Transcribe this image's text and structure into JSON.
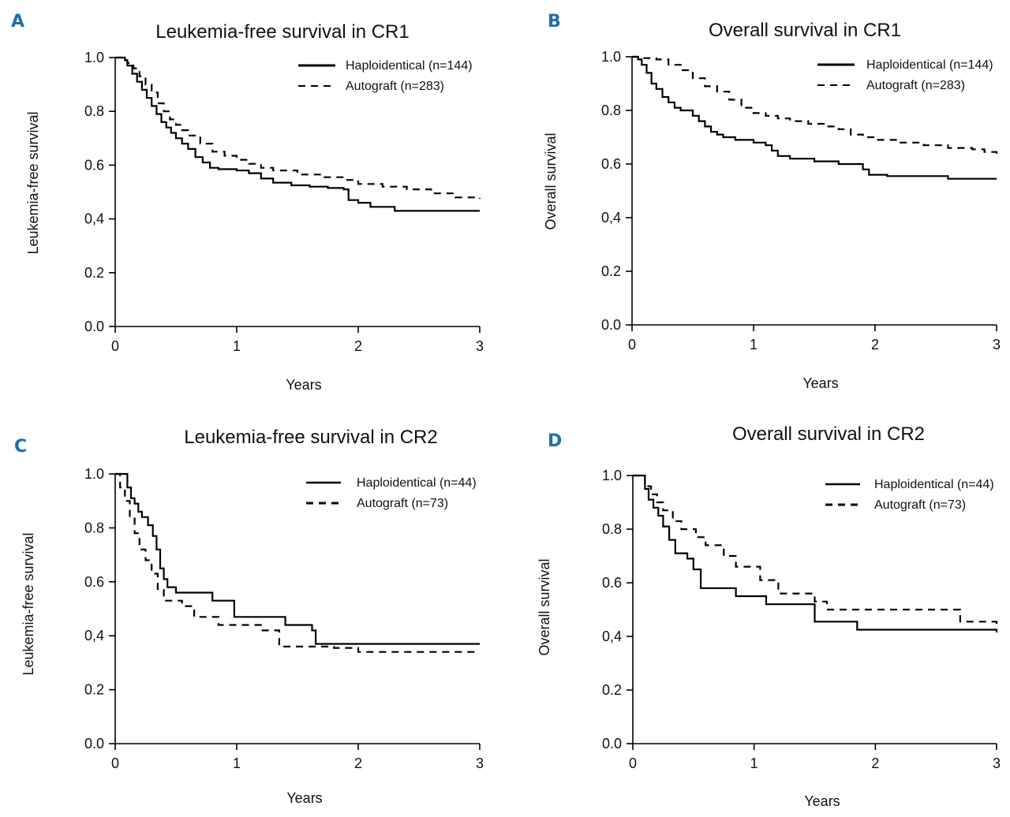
{
  "colors": {
    "panel_letter": "#1f6fa8",
    "line": "#000000"
  },
  "chart_data": [
    {
      "type": "line",
      "panel": "A",
      "title": "Leukemia-free survival in CR1",
      "xlabel": "Years",
      "ylabel": "Leukemia-free survival",
      "xlim": [
        0,
        3
      ],
      "ylim": [
        0,
        1
      ],
      "xticks": [
        "0",
        "1",
        "2",
        "3"
      ],
      "yticks": [
        "0.0",
        "0.2",
        "0,4",
        "0.6",
        "0.8",
        "1.0"
      ],
      "series": [
        {
          "name": "Haploidentical (n=144)",
          "style": "solid",
          "x": [
            0,
            0.04,
            0.08,
            0.1,
            0.14,
            0.18,
            0.22,
            0.26,
            0.3,
            0.34,
            0.38,
            0.42,
            0.46,
            0.5,
            0.55,
            0.6,
            0.66,
            0.72,
            0.78,
            0.85,
            1.0,
            1.1,
            1.2,
            1.3,
            1.45,
            1.6,
            1.75,
            1.88,
            1.92,
            2.0,
            2.1,
            2.3,
            2.5,
            3.0
          ],
          "y": [
            1.0,
            1.0,
            0.99,
            0.97,
            0.94,
            0.91,
            0.88,
            0.85,
            0.82,
            0.79,
            0.76,
            0.74,
            0.72,
            0.7,
            0.68,
            0.66,
            0.63,
            0.61,
            0.59,
            0.585,
            0.58,
            0.57,
            0.55,
            0.535,
            0.525,
            0.52,
            0.515,
            0.51,
            0.47,
            0.46,
            0.445,
            0.43,
            0.43,
            0.43
          ]
        },
        {
          "name": "Autograft (n=283)",
          "style": "dashed",
          "x": [
            0,
            0.05,
            0.1,
            0.15,
            0.2,
            0.25,
            0.3,
            0.35,
            0.4,
            0.45,
            0.5,
            0.55,
            0.6,
            0.7,
            0.8,
            0.9,
            1.0,
            1.1,
            1.2,
            1.3,
            1.5,
            1.7,
            1.9,
            2.0,
            2.2,
            2.4,
            2.6,
            2.8,
            3.0
          ],
          "y": [
            1.0,
            0.99,
            0.98,
            0.96,
            0.93,
            0.9,
            0.87,
            0.83,
            0.8,
            0.77,
            0.75,
            0.73,
            0.71,
            0.68,
            0.65,
            0.635,
            0.62,
            0.605,
            0.59,
            0.58,
            0.565,
            0.555,
            0.545,
            0.53,
            0.52,
            0.51,
            0.495,
            0.48,
            0.475
          ]
        }
      ]
    },
    {
      "type": "line",
      "panel": "B",
      "title": "Overall survival in CR1",
      "xlabel": "Years",
      "ylabel": "Overall survival",
      "xlim": [
        0,
        3
      ],
      "ylim": [
        0,
        1
      ],
      "xticks": [
        "0",
        "1",
        "2",
        "3"
      ],
      "yticks": [
        "0.0",
        "0.2",
        "0,4",
        "0.6",
        "0.8",
        "1.0"
      ],
      "series": [
        {
          "name": "Haploidentical (n=144)",
          "style": "solid",
          "x": [
            0,
            0.05,
            0.08,
            0.12,
            0.16,
            0.2,
            0.25,
            0.3,
            0.35,
            0.4,
            0.5,
            0.55,
            0.6,
            0.65,
            0.7,
            0.75,
            0.85,
            1.0,
            1.1,
            1.15,
            1.2,
            1.3,
            1.5,
            1.7,
            1.9,
            1.95,
            2.1,
            2.3,
            2.55,
            2.6,
            3.0
          ],
          "y": [
            1.0,
            0.99,
            0.97,
            0.94,
            0.9,
            0.88,
            0.85,
            0.83,
            0.81,
            0.8,
            0.78,
            0.76,
            0.74,
            0.72,
            0.71,
            0.7,
            0.69,
            0.68,
            0.67,
            0.65,
            0.63,
            0.62,
            0.61,
            0.6,
            0.58,
            0.56,
            0.555,
            0.555,
            0.555,
            0.545,
            0.545
          ]
        },
        {
          "name": "Autograft (n=283)",
          "style": "dashed",
          "x": [
            0,
            0.1,
            0.2,
            0.3,
            0.4,
            0.5,
            0.6,
            0.7,
            0.8,
            0.9,
            1.0,
            1.1,
            1.2,
            1.3,
            1.45,
            1.6,
            1.7,
            1.8,
            1.9,
            2.0,
            2.2,
            2.4,
            2.6,
            2.8,
            2.9,
            3.0
          ],
          "y": [
            1.0,
            0.995,
            0.99,
            0.97,
            0.95,
            0.92,
            0.89,
            0.87,
            0.84,
            0.81,
            0.79,
            0.78,
            0.77,
            0.76,
            0.75,
            0.74,
            0.73,
            0.71,
            0.7,
            0.69,
            0.68,
            0.67,
            0.66,
            0.655,
            0.645,
            0.635
          ]
        }
      ]
    },
    {
      "type": "line",
      "panel": "C",
      "title": "Leukemia-free survival in CR2",
      "xlabel": "Years",
      "ylabel": "Leukemia-free survival",
      "xlim": [
        0,
        3
      ],
      "ylim": [
        0,
        1
      ],
      "xticks": [
        "0",
        "1",
        "2",
        "3"
      ],
      "yticks": [
        "0.0",
        "0.2",
        "0,4",
        "0.6",
        "0.8",
        "1.0"
      ],
      "series": [
        {
          "name": "Haploidentical (n=44)",
          "style": "solid",
          "x": [
            0,
            0.07,
            0.1,
            0.13,
            0.16,
            0.19,
            0.22,
            0.27,
            0.31,
            0.34,
            0.37,
            0.4,
            0.43,
            0.5,
            0.8,
            0.98,
            1.4,
            1.62,
            1.65,
            3.0
          ],
          "y": [
            1.0,
            1.0,
            0.95,
            0.91,
            0.89,
            0.86,
            0.84,
            0.81,
            0.77,
            0.72,
            0.65,
            0.61,
            0.58,
            0.56,
            0.53,
            0.47,
            0.44,
            0.42,
            0.37,
            0.37
          ]
        },
        {
          "name": "Autograft (n=73)",
          "style": "dashed",
          "x": [
            0,
            0.04,
            0.08,
            0.12,
            0.16,
            0.2,
            0.25,
            0.3,
            0.35,
            0.4,
            0.55,
            0.65,
            0.85,
            1.2,
            1.35,
            1.55,
            1.8,
            2.0,
            2.5,
            3.0
          ],
          "y": [
            1.0,
            0.95,
            0.9,
            0.84,
            0.78,
            0.72,
            0.68,
            0.63,
            0.57,
            0.53,
            0.51,
            0.47,
            0.44,
            0.42,
            0.36,
            0.36,
            0.355,
            0.34,
            0.34,
            0.34
          ]
        }
      ]
    },
    {
      "type": "line",
      "panel": "D",
      "title": "Overall survival in CR2",
      "xlabel": "Years",
      "ylabel": "Overall survival",
      "xlim": [
        0,
        3
      ],
      "ylim": [
        0,
        1
      ],
      "xticks": [
        "0",
        "1",
        "2",
        "3"
      ],
      "yticks": [
        "0.0",
        "0.2",
        "0,4",
        "0.6",
        "0.8",
        "1.0"
      ],
      "series": [
        {
          "name": "Haploidentical (n=44)",
          "style": "solid",
          "x": [
            0,
            0.08,
            0.1,
            0.13,
            0.17,
            0.21,
            0.25,
            0.3,
            0.35,
            0.45,
            0.5,
            0.56,
            0.85,
            1.1,
            1.5,
            1.85,
            2.7,
            3.0
          ],
          "y": [
            1.0,
            1.0,
            0.95,
            0.91,
            0.88,
            0.85,
            0.81,
            0.76,
            0.71,
            0.69,
            0.65,
            0.58,
            0.55,
            0.52,
            0.455,
            0.425,
            0.425,
            0.415
          ]
        },
        {
          "name": "Autograft (n=73)",
          "style": "dashed",
          "x": [
            0,
            0.1,
            0.15,
            0.2,
            0.25,
            0.33,
            0.4,
            0.52,
            0.6,
            0.75,
            0.85,
            1.05,
            1.2,
            1.5,
            1.6,
            2.0,
            2.4,
            2.65,
            2.7,
            3.0
          ],
          "y": [
            1.0,
            0.96,
            0.93,
            0.9,
            0.87,
            0.83,
            0.8,
            0.77,
            0.74,
            0.7,
            0.66,
            0.61,
            0.56,
            0.53,
            0.5,
            0.5,
            0.5,
            0.5,
            0.455,
            0.445
          ]
        }
      ]
    }
  ]
}
